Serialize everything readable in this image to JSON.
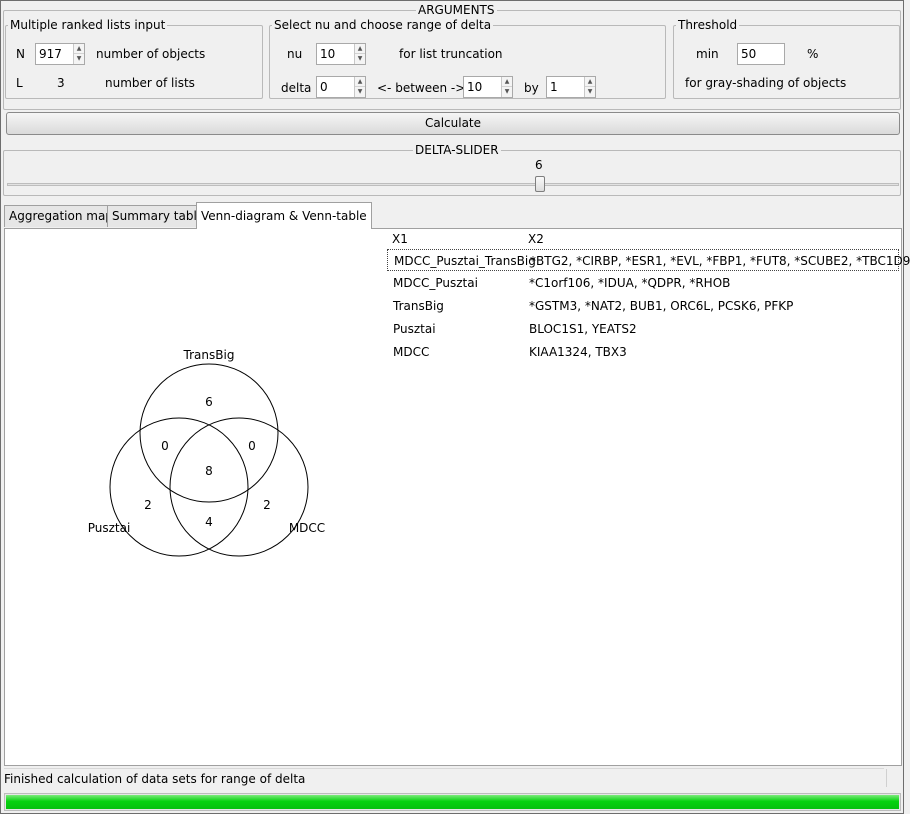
{
  "arguments_title": "ARGUMENTS",
  "ranked_lists": {
    "title": "Multiple ranked lists input",
    "n_label": "N",
    "n_value": "917",
    "n_desc": "number of objects",
    "l_label": "L",
    "l_value": "3",
    "l_desc": "number of lists"
  },
  "nu_delta": {
    "title": "Select nu and choose range of delta",
    "nu_label": "nu",
    "nu_value": "10",
    "nu_desc": "for list truncation",
    "delta_label": "delta",
    "delta_from": "0",
    "between_label": "<- between ->",
    "delta_to": "10",
    "by_label": "by",
    "delta_by": "1"
  },
  "threshold": {
    "title": "Threshold",
    "min_label": "min",
    "min_value": "50",
    "unit": "%",
    "desc": "for gray-shading of objects"
  },
  "calculate_label": "Calculate",
  "delta_slider": {
    "title": "DELTA-SLIDER",
    "value": "6"
  },
  "tabs": [
    "Aggregation map",
    "Summary table",
    "Venn-diagram & Venn-table"
  ],
  "active_tab": 2,
  "venn": {
    "sets": [
      "TransBig",
      "Pusztai",
      "MDCC"
    ],
    "regions": {
      "transbig_only": "6",
      "transbig_pusztai": "0",
      "transbig_mdcc": "0",
      "all_three": "8",
      "pusztai_only": "2",
      "mdcc_only": "2",
      "pusztai_mdcc": "4"
    }
  },
  "venn_table": {
    "columns": [
      "X1",
      "X2"
    ],
    "rows": [
      [
        "MDCC_Pusztai_TransBig",
        "*BTG2, *CIRBP, *ESR1, *EVL, *FBP1, *FUT8, *SCUBE2, *TBC1D9"
      ],
      [
        "MDCC_Pusztai",
        "*C1orf106, *IDUA, *QDPR, *RHOB"
      ],
      [
        "TransBig",
        "*GSTM3, *NAT2, BUB1, ORC6L, PCSK6, PFKP"
      ],
      [
        "Pusztai",
        "BLOC1S1, YEATS2"
      ],
      [
        "MDCC",
        "KIAA1324, TBX3"
      ]
    ]
  },
  "status_text": "Finished calculation of data sets for range of delta",
  "progress_fraction": 1.0
}
